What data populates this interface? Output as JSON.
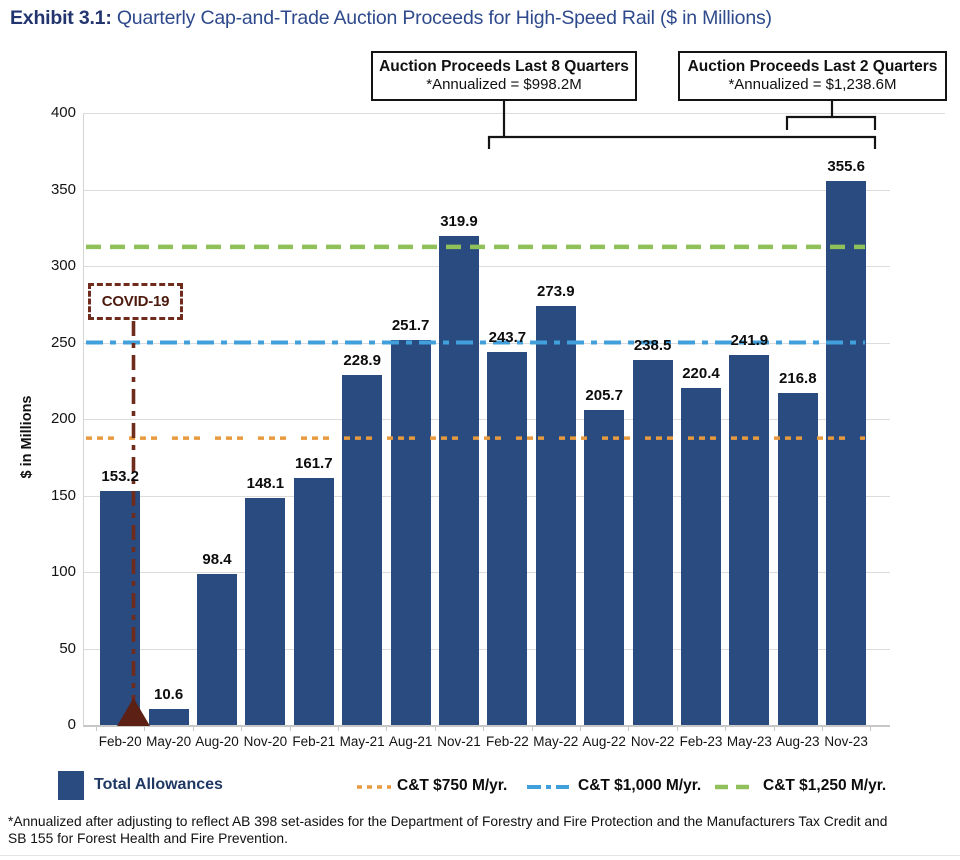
{
  "title": {
    "prefix": "Exhibit 3.1:",
    "text": "Quarterly Cap-and-Trade Auction Proceeds for High-Speed Rail ($ in Millions)"
  },
  "annotations": {
    "box_8q": {
      "line1": "Auction Proceeds Last 8 Quarters",
      "line2": "*Annualized = $998.2M"
    },
    "box_2q": {
      "line1": "Auction Proceeds Last 2 Quarters",
      "line2": "*Annualized = $1,238.6M"
    },
    "covid": {
      "label": "COVID-19"
    }
  },
  "chart_data": {
    "type": "bar",
    "title": "Quarterly Cap-and-Trade Auction Proceeds for High-Speed Rail ($ in Millions)",
    "xlabel": "",
    "ylabel": "$ in Millions",
    "ylim": [
      0,
      400
    ],
    "ytick_step": 50,
    "grid": true,
    "categories": [
      "Feb-20",
      "May-20",
      "Aug-20",
      "Nov-20",
      "Feb-21",
      "May-21",
      "Aug-21",
      "Nov-21",
      "Feb-22",
      "May-22",
      "Aug-22",
      "Nov-22",
      "Feb-23",
      "May-23",
      "Aug-23",
      "Nov-23"
    ],
    "values": [
      153.2,
      10.6,
      98.4,
      148.1,
      161.7,
      228.9,
      251.7,
      319.9,
      243.7,
      273.9,
      205.7,
      238.5,
      220.4,
      241.9,
      216.8,
      355.6
    ],
    "bar_color": "#2a4b7f",
    "series_name": "Total Allowances",
    "reference_lines": [
      {
        "label": "C&T $750 M/yr.",
        "annual_value_musd": 750,
        "quarterly_value": 187.5,
        "color": "#e89a3f",
        "style": "dotted"
      },
      {
        "label": "C&T $1,000 M/yr.",
        "annual_value_musd": 1000,
        "quarterly_value": 250.0,
        "color": "#41a0dc",
        "style": "dash-dot"
      },
      {
        "label": "C&T $1,250 M/yr.",
        "annual_value_musd": 1250,
        "quarterly_value": 312.5,
        "color": "#90c05a",
        "style": "dashed"
      }
    ],
    "legend": {
      "bars_label": "Total Allowances",
      "position": "bottom"
    }
  },
  "covid_annotation_color": "#6f2b1b",
  "footnote": {
    "line1": "*Annualized after adjusting to reflect AB 398 set-asides for the Department of Forestry and Fire Protection and the Manufacturers Tax Credit and",
    "line2": "SB 155 for Forest Health and Fire Prevention."
  }
}
